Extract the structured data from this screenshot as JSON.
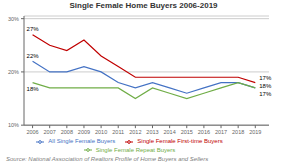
{
  "chart_data": {
    "type": "line",
    "title": "Single Female Home Buyers 2006-2019",
    "x": [
      2006,
      2007,
      2008,
      2009,
      2010,
      2011,
      2012,
      2013,
      2014,
      2015,
      2016,
      2017,
      2018,
      2019
    ],
    "series": [
      {
        "name": "All Single Female Buyers",
        "color": "#4472C4",
        "values": [
          0.22,
          0.2,
          0.2,
          0.21,
          0.2,
          0.18,
          0.17,
          0.18,
          0.17,
          0.16,
          0.17,
          0.18,
          0.18,
          0.17
        ]
      },
      {
        "name": "Single Female First-time Buyers",
        "color": "#C00000",
        "values": [
          0.27,
          0.25,
          0.24,
          0.26,
          0.23,
          0.21,
          0.19,
          0.19,
          0.19,
          0.19,
          0.19,
          0.19,
          0.19,
          0.18
        ]
      },
      {
        "name": "Single Female Repeat Buyers",
        "color": "#70AD47",
        "values": [
          0.18,
          0.17,
          0.17,
          0.17,
          0.17,
          0.17,
          0.15,
          0.17,
          0.16,
          0.15,
          0.16,
          0.17,
          0.18,
          0.17
        ]
      }
    ],
    "xlim": [
      2005.5,
      2019.8
    ],
    "xticks": [
      2006,
      2007,
      2008,
      2009,
      2010,
      2011,
      2012,
      2013,
      2014,
      2015,
      2016,
      2017,
      2018,
      2019
    ],
    "ylim": [
      0.1,
      0.305
    ],
    "yticks": [
      {
        "value": 0.1,
        "label": "10%"
      },
      {
        "value": 0.2,
        "label": "20%"
      },
      {
        "value": 0.3,
        "label": "30%"
      }
    ],
    "grid": true,
    "legend": "bottom",
    "annotations": [
      {
        "text": "22%",
        "x": 2006,
        "y": 0.22,
        "color": "#000000"
      },
      {
        "text": "27%",
        "x": 2006,
        "y": 0.27,
        "color": "#000000"
      },
      {
        "text": "18%",
        "x": 2006,
        "y": 0.18,
        "color": "#000000"
      },
      {
        "text": "18%",
        "x": 2019,
        "y": 0.17,
        "color": "#000000"
      },
      {
        "text": "17%",
        "x": 2019,
        "y": 0.18,
        "color": "#000000"
      },
      {
        "text": "17%",
        "x": 2019,
        "y": 0.17,
        "color": "#000000"
      }
    ],
    "source": "Source: National Association of Realtors Profile of Home Buyers and Sellers"
  }
}
